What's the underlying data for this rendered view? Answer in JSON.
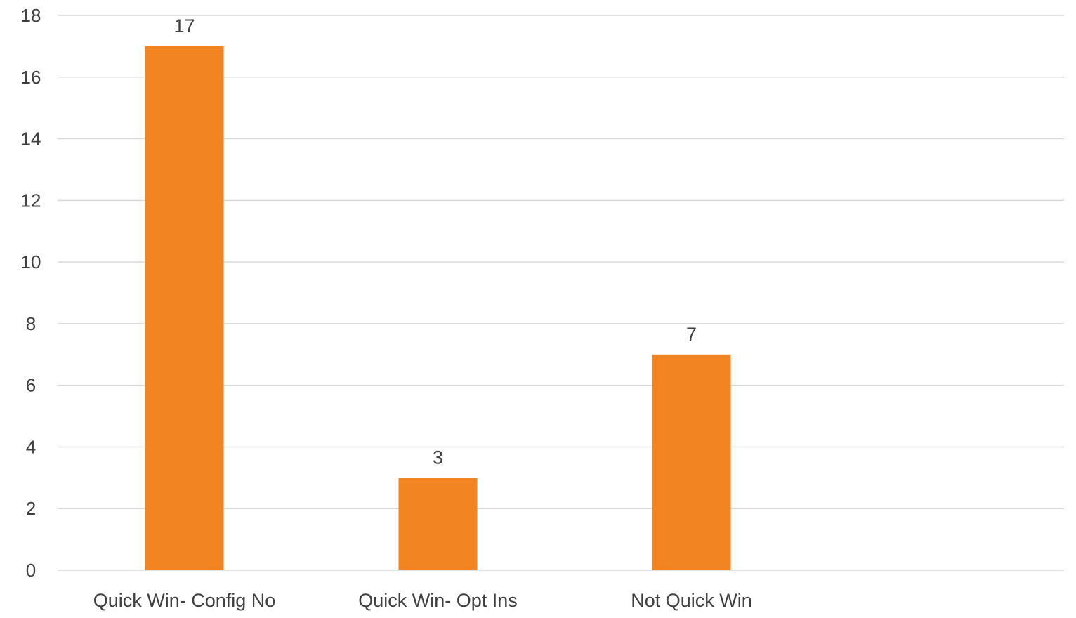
{
  "chart_data": {
    "type": "bar",
    "title": "",
    "xlabel": "",
    "ylabel": "",
    "categories": [
      "Quick Win- Config No",
      "Quick Win- Opt Ins",
      "Not Quick Win"
    ],
    "values": [
      17,
      3,
      7
    ],
    "data_labels": [
      "17",
      "3",
      "7"
    ],
    "ylim": [
      0,
      18
    ],
    "yticks": [
      0,
      2,
      4,
      6,
      8,
      10,
      12,
      14,
      16,
      18
    ],
    "grid": true,
    "legend": "none",
    "bar_color": "#f28522",
    "grid_color": "#d9d9d9",
    "text_color": "#404040"
  }
}
